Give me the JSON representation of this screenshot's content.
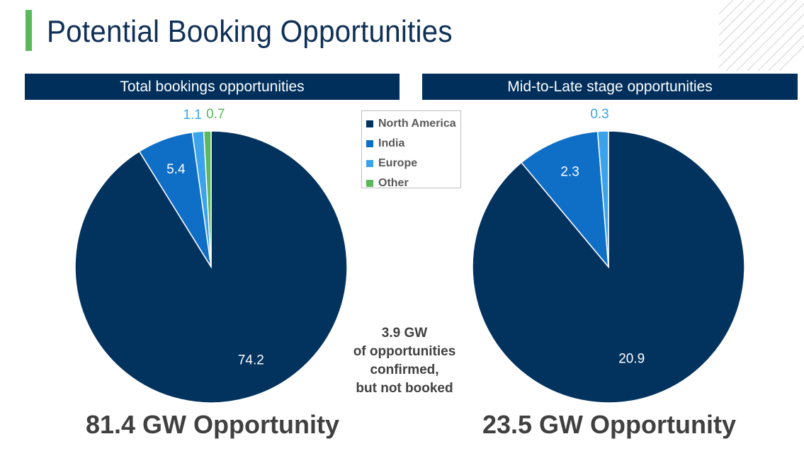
{
  "page": {
    "title": "Potential Booking Opportunities"
  },
  "colors": {
    "accent": "#5cb85c",
    "header_bg": "#002f5c",
    "title": "#0f3057",
    "north_america": "#02335f",
    "india": "#0f6fc6",
    "europe": "#3ba3ec",
    "other": "#5cb85c"
  },
  "legend": {
    "items": [
      {
        "label": "North America",
        "color": "#02335f"
      },
      {
        "label": "India",
        "color": "#0f6fc6"
      },
      {
        "label": "Europe",
        "color": "#3ba3ec"
      },
      {
        "label": "Other",
        "color": "#5cb85c"
      }
    ]
  },
  "note": {
    "lines": [
      "3.9 GW",
      "of opportunities",
      "confirmed,",
      "but not booked"
    ]
  },
  "chart_data": [
    {
      "type": "pie",
      "title": "Total bookings opportunities",
      "categories": [
        "North America",
        "India",
        "Europe",
        "Other"
      ],
      "values": [
        74.2,
        5.4,
        1.1,
        0.7
      ],
      "value_labels": [
        "74.2",
        "5.4",
        "1.1",
        "0.7"
      ],
      "total_label": "81.4 GW Opportunity",
      "legend": "top-right"
    },
    {
      "type": "pie",
      "title": "Mid-to-Late stage opportunities",
      "categories": [
        "North America",
        "India",
        "Europe"
      ],
      "values": [
        20.9,
        2.3,
        0.3
      ],
      "value_labels": [
        "20.9",
        "2.3",
        "0.3"
      ],
      "total_label": "23.5 GW Opportunity"
    }
  ]
}
